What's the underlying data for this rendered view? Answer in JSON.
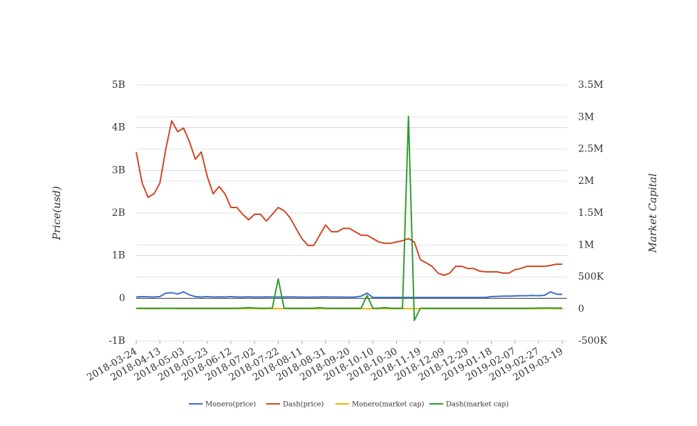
{
  "chart_data": {
    "type": "line",
    "y_label": "Price(usd)",
    "y2_label": "Market Capital",
    "x": [
      "2018-03-24",
      "2018-03-29",
      "2018-04-03",
      "2018-04-08",
      "2018-04-13",
      "2018-04-18",
      "2018-04-23",
      "2018-04-28",
      "2018-05-03",
      "2018-05-08",
      "2018-05-13",
      "2018-05-18",
      "2018-05-23",
      "2018-05-28",
      "2018-06-02",
      "2018-06-07",
      "2018-06-12",
      "2018-06-17",
      "2018-06-22",
      "2018-06-27",
      "2018-07-02",
      "2018-07-07",
      "2018-07-12",
      "2018-07-17",
      "2018-07-22",
      "2018-07-27",
      "2018-08-01",
      "2018-08-06",
      "2018-08-11",
      "2018-08-16",
      "2018-08-21",
      "2018-08-26",
      "2018-08-31",
      "2018-09-05",
      "2018-09-10",
      "2018-09-15",
      "2018-09-20",
      "2018-09-25",
      "2018-09-30",
      "2018-10-05",
      "2018-10-10",
      "2018-10-15",
      "2018-10-20",
      "2018-10-25",
      "2018-10-30",
      "2018-11-04",
      "2018-11-09",
      "2018-11-14",
      "2018-11-19",
      "2018-11-24",
      "2018-11-29",
      "2018-12-04",
      "2018-12-09",
      "2018-12-14",
      "2018-12-19",
      "2018-12-24",
      "2018-12-29",
      "2019-01-03",
      "2019-01-08",
      "2019-01-13",
      "2019-01-18",
      "2019-01-23",
      "2019-01-28",
      "2019-02-02",
      "2019-02-07",
      "2019-02-12",
      "2019-02-17",
      "2019-02-22",
      "2019-02-27",
      "2019-03-04",
      "2019-03-09",
      "2019-03-14",
      "2019-03-19"
    ],
    "xlim": [
      "2018-03-24",
      "2019-03-23"
    ],
    "xticks": [
      "2018-03-24",
      "2018-04-13",
      "2018-05-03",
      "2018-05-23",
      "2018-06-12",
      "2018-07-02",
      "2018-07-22",
      "2018-08-11",
      "2018-08-31",
      "2018-09-20",
      "2018-10-10",
      "2018-10-30",
      "2018-11-19",
      "2018-12-09",
      "2018-12-29",
      "2019-01-18",
      "2019-02-07",
      "2019-02-27",
      "2019-03-19"
    ],
    "ylim": [
      -1000000000,
      5000000000
    ],
    "yticks": [
      {
        "value": -1000000000,
        "label": "-1B"
      },
      0,
      {
        "value": 1000000000,
        "label": "1B"
      },
      {
        "value": 2000000000,
        "label": "2B"
      },
      {
        "value": 3000000000,
        "label": "3B"
      },
      {
        "value": 4000000000,
        "label": "4B"
      },
      {
        "value": 5000000000,
        "label": "5B"
      }
    ],
    "y2lim": [
      -500000,
      3500000
    ],
    "y2ticks": [
      {
        "value": -500000,
        "label": "-500K"
      },
      0,
      {
        "value": 500000,
        "label": "500K"
      },
      {
        "value": 1000000,
        "label": "1M"
      },
      {
        "value": 1500000,
        "label": "1.5M"
      },
      {
        "value": 2000000,
        "label": "2M"
      },
      {
        "value": 2500000,
        "label": "2.5M"
      },
      {
        "value": 3000000,
        "label": "3M"
      },
      {
        "value": 3500000,
        "label": "3.5M"
      }
    ],
    "grid": true,
    "series": [
      {
        "name": "Monero(price)",
        "color": "#3a6bc4",
        "values": [
          30000000,
          40000000,
          35000000,
          30000000,
          40000000,
          120000000,
          130000000,
          100000000,
          150000000,
          80000000,
          40000000,
          30000000,
          40000000,
          30000000,
          35000000,
          30000000,
          40000000,
          30000000,
          30000000,
          35000000,
          30000000,
          30000000,
          35000000,
          30000000,
          30000000,
          30000000,
          35000000,
          30000000,
          30000000,
          25000000,
          30000000,
          30000000,
          35000000,
          30000000,
          30000000,
          30000000,
          25000000,
          30000000,
          50000000,
          120000000,
          20000000,
          20000000,
          20000000,
          20000000,
          20000000,
          20000000,
          20000000,
          20000000,
          20000000,
          20000000,
          20000000,
          20000000,
          20000000,
          20000000,
          20000000,
          20000000,
          20000000,
          20000000,
          20000000,
          20000000,
          40000000,
          45000000,
          50000000,
          50000000,
          55000000,
          60000000,
          60000000,
          65000000,
          60000000,
          70000000,
          150000000,
          100000000,
          90000000
        ]
      },
      {
        "name": "Dash(price)",
        "color": "#cf4520",
        "values": [
          3430000000,
          2700000000,
          2370000000,
          2450000000,
          2700000000,
          3500000000,
          4160000000,
          3910000000,
          3990000000,
          3670000000,
          3260000000,
          3430000000,
          2860000000,
          2450000000,
          2620000000,
          2450000000,
          2130000000,
          2130000000,
          1970000000,
          1840000000,
          1970000000,
          1970000000,
          1810000000,
          1970000000,
          2130000000,
          2050000000,
          1890000000,
          1640000000,
          1400000000,
          1240000000,
          1240000000,
          1480000000,
          1720000000,
          1560000000,
          1560000000,
          1640000000,
          1640000000,
          1560000000,
          1480000000,
          1480000000,
          1400000000,
          1320000000,
          1290000000,
          1290000000,
          1320000000,
          1350000000,
          1400000000,
          1320000000,
          910000000,
          830000000,
          750000000,
          590000000,
          540000000,
          590000000,
          750000000,
          750000000,
          700000000,
          700000000,
          640000000,
          620000000,
          620000000,
          620000000,
          590000000,
          590000000,
          670000000,
          700000000,
          750000000,
          750000000,
          750000000,
          750000000,
          770000000,
          800000000,
          800000000
        ]
      },
      {
        "name": "Monero(market cap)",
        "color": "#e6b400",
        "axis": "y2",
        "values": [
          5000,
          5000,
          5000,
          5000,
          5000,
          8000,
          8000,
          5000,
          5000,
          5000,
          5000,
          5000,
          5000,
          5000,
          5000,
          5000,
          5000,
          5000,
          5000,
          5000,
          5000,
          5000,
          5000,
          5000,
          5000,
          5000,
          5000,
          5000,
          5000,
          5000,
          5000,
          5000,
          5000,
          5000,
          5000,
          5000,
          5000,
          5000,
          5000,
          5000,
          5000,
          5000,
          5000,
          5000,
          5000,
          5000,
          5000,
          5000,
          5000,
          5000,
          5000,
          5000,
          5000,
          5000,
          5000,
          5000,
          5000,
          5000,
          5000,
          5000,
          5000,
          5000,
          5000,
          5000,
          5000,
          5000,
          5000,
          5000,
          5000,
          5000,
          8000,
          5000,
          5000
        ]
      },
      {
        "name": "Dash(market cap)",
        "color": "#2a9d2a",
        "axis": "y2",
        "values": [
          10000,
          10000,
          10000,
          10000,
          10000,
          10000,
          10000,
          10000,
          10000,
          10000,
          10000,
          10000,
          10000,
          10000,
          10000,
          10000,
          10000,
          10000,
          15000,
          20000,
          15000,
          10000,
          10000,
          15000,
          470000,
          10000,
          10000,
          10000,
          10000,
          10000,
          10000,
          20000,
          10000,
          10000,
          10000,
          10000,
          10000,
          10000,
          10000,
          210000,
          10000,
          10000,
          20000,
          10000,
          10000,
          10000,
          3010000,
          -180000,
          10000,
          10000,
          10000,
          10000,
          10000,
          10000,
          10000,
          10000,
          10000,
          10000,
          10000,
          10000,
          10000,
          10000,
          10000,
          10000,
          10000,
          10000,
          10000,
          10000,
          15000,
          15000,
          15000,
          15000,
          10000
        ]
      }
    ]
  }
}
